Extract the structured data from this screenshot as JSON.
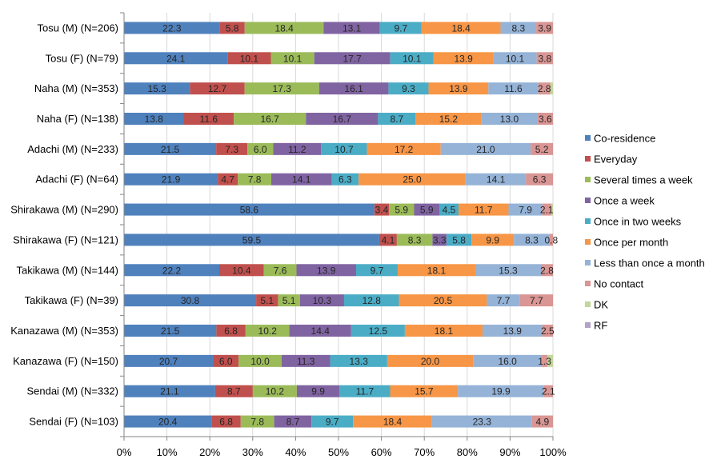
{
  "chart_data": {
    "type": "bar",
    "orientation": "horizontal",
    "stacked": "percent",
    "title": "",
    "xlabel": "",
    "ylabel": "",
    "xlim": [
      0,
      100
    ],
    "x_ticks": [
      "0%",
      "10%",
      "20%",
      "30%",
      "40%",
      "50%",
      "60%",
      "70%",
      "80%",
      "90%",
      "100%"
    ],
    "grid": "vertical",
    "legend_position": "right",
    "categories": [
      "Tosu (M) (N=206)",
      "Tosu (F) (N=79)",
      "Naha (M) (N=353)",
      "Naha (F) (N=138)",
      "Adachi (M) (N=233)",
      "Adachi (F) (N=64)",
      "Shirakawa (M) (N=290)",
      "Shirakawa (F) (N=121)",
      "Takikawa (M) (N=144)",
      "Takikawa (F) (N=39)",
      "Kanazawa (M) (N=353)",
      "Kanazawa (F) (N=150)",
      "Sendai (M) (N=332)",
      "Sendai (F) (N=103)"
    ],
    "series": [
      {
        "name": "Co-residence",
        "color": "#4F81BD",
        "values": [
          22.3,
          24.1,
          15.3,
          13.8,
          21.5,
          21.9,
          58.6,
          59.5,
          22.2,
          30.8,
          21.5,
          20.7,
          21.1,
          20.4
        ],
        "labels": [
          "22.3",
          "24.1",
          "15.3",
          "13.8",
          "21.5",
          "21.9",
          "58.6",
          "59.5",
          "22.2",
          "30.8",
          "21.5",
          "20.7",
          "21.1",
          "20.4"
        ]
      },
      {
        "name": "Everyday",
        "color": "#C0504D",
        "values": [
          5.8,
          10.1,
          12.7,
          11.6,
          7.3,
          4.7,
          3.4,
          4.1,
          10.4,
          5.1,
          6.8,
          6.0,
          8.7,
          6.8
        ],
        "labels": [
          "5.8",
          "10.1",
          "12.7",
          "11.6",
          "7.3",
          "4.7",
          "3.4",
          "4.1",
          "10.4",
          "5.1",
          "6.8",
          "6.0",
          "8.7",
          "6.8"
        ]
      },
      {
        "name": "Several times a week",
        "color": "#9BBB59",
        "values": [
          18.4,
          10.1,
          17.3,
          16.7,
          6.0,
          7.8,
          5.9,
          8.3,
          7.6,
          5.1,
          10.2,
          10.0,
          10.2,
          7.8
        ],
        "labels": [
          "18.4",
          "10.1",
          "17.3",
          "16.7",
          "6.0",
          "7.8",
          "5.9",
          "8.3",
          "7.6",
          "5.1",
          "10.2",
          "10.0",
          "10.2",
          "7.8"
        ]
      },
      {
        "name": "Once a week",
        "color": "#8064A2",
        "values": [
          13.1,
          17.7,
          16.1,
          16.7,
          11.2,
          14.1,
          5.9,
          3.3,
          13.9,
          10.3,
          14.4,
          11.3,
          9.9,
          8.7
        ],
        "labels": [
          "13.1",
          "17.7",
          "16.1",
          "16.7",
          "11.2",
          "14.1",
          "5.9",
          "3.3",
          "13.9",
          "10.3",
          "14.4",
          "11.3",
          "9.9",
          "8.7"
        ]
      },
      {
        "name": "Once in two weeks",
        "color": "#4BACC6",
        "values": [
          9.7,
          10.1,
          9.3,
          8.7,
          10.7,
          6.3,
          4.5,
          5.8,
          9.7,
          12.8,
          12.5,
          13.3,
          11.7,
          9.7
        ],
        "labels": [
          "9.7",
          "10.1",
          "9.3",
          "8.7",
          "10.7",
          "6.3",
          "4.5",
          "5.8",
          "9.7",
          "12.8",
          "12.5",
          "13.3",
          "11.7",
          "9.7"
        ]
      },
      {
        "name": "Once per month",
        "color": "#F79646",
        "values": [
          18.4,
          13.9,
          13.9,
          15.2,
          17.2,
          25.0,
          11.7,
          9.9,
          18.1,
          20.5,
          18.1,
          20.0,
          15.7,
          18.4
        ],
        "labels": [
          "18.4",
          "13.9",
          "13.9",
          "15.2",
          "17.2",
          "25.0",
          "11.7",
          "9.9",
          "18.1",
          "20.5",
          "18.1",
          "20.0",
          "15.7",
          "18.4"
        ]
      },
      {
        "name": "Less than once a month",
        "color": "#95B3D7",
        "values": [
          8.3,
          10.1,
          11.6,
          13.0,
          21.0,
          14.1,
          7.9,
          8.3,
          15.3,
          7.7,
          13.9,
          16.0,
          19.9,
          23.3
        ],
        "labels": [
          "8.3",
          "10.1",
          "11.6",
          "13.0",
          "21.0",
          "14.1",
          "7.9",
          "8.3",
          "15.3",
          "7.7",
          "13.9",
          "16.0",
          "19.9",
          "23.3"
        ]
      },
      {
        "name": "No contact",
        "color": "#D99694",
        "values": [
          3.9,
          3.8,
          2.8,
          3.6,
          5.2,
          6.3,
          2.1,
          0.8,
          2.8,
          7.7,
          2.5,
          1.3,
          2.1,
          4.9
        ],
        "labels": [
          "3.9",
          "3.8",
          "2.8",
          "3.6",
          "5.2",
          "6.3",
          "2.1",
          "0.8",
          "2.8",
          "7.7",
          "2.5",
          "1.3",
          "2.1",
          "4.9"
        ]
      },
      {
        "name": "DK",
        "color": "#C3D69B",
        "values": [
          0,
          0,
          0.6,
          0,
          0,
          0,
          0.4,
          0,
          0,
          0,
          0,
          1.3,
          0,
          0
        ],
        "labels": [
          "",
          "",
          "",
          "",
          "",
          "",
          "",
          "",
          "",
          "",
          "",
          "",
          "",
          ""
        ]
      },
      {
        "name": "RF",
        "color": "#B2A2C7",
        "values": [
          0,
          0,
          0,
          0,
          0,
          0,
          0,
          0,
          0,
          0,
          0,
          0,
          0,
          0
        ],
        "labels": [
          "",
          "",
          "",
          "",
          "",
          "",
          "",
          "",
          "",
          "",
          "",
          "",
          "",
          ""
        ]
      }
    ]
  }
}
